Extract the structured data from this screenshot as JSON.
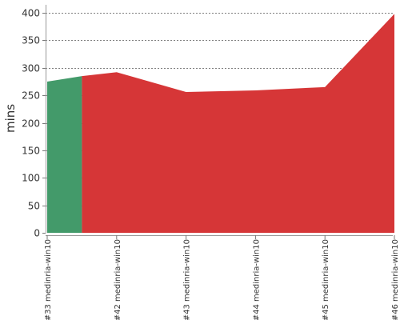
{
  "chart_data": {
    "type": "area",
    "ylabel": "mins",
    "ylim": [
      0,
      400
    ],
    "yticks": [
      0,
      50,
      100,
      150,
      200,
      250,
      300,
      350,
      400
    ],
    "categories": [
      "#33 medinria-win10",
      "#42 medinria-win10",
      "#43 medinria-win10",
      "#44 medinria-win10",
      "#45 medinria-win10",
      "#46 medinria-win10"
    ],
    "grid": true,
    "success_segment": {
      "status": "success",
      "color": "#439a6a",
      "points": [
        {
          "x": 0,
          "y": 275
        },
        {
          "x": 0.5,
          "y": 285
        }
      ]
    },
    "failure_segment": {
      "status": "failure",
      "color": "#d63637",
      "points": [
        {
          "x": 0.5,
          "y": 285
        },
        {
          "x": 1,
          "y": 292
        },
        {
          "x": 2,
          "y": 256
        },
        {
          "x": 3,
          "y": 259
        },
        {
          "x": 4,
          "y": 265
        },
        {
          "x": 5,
          "y": 398
        }
      ]
    }
  }
}
